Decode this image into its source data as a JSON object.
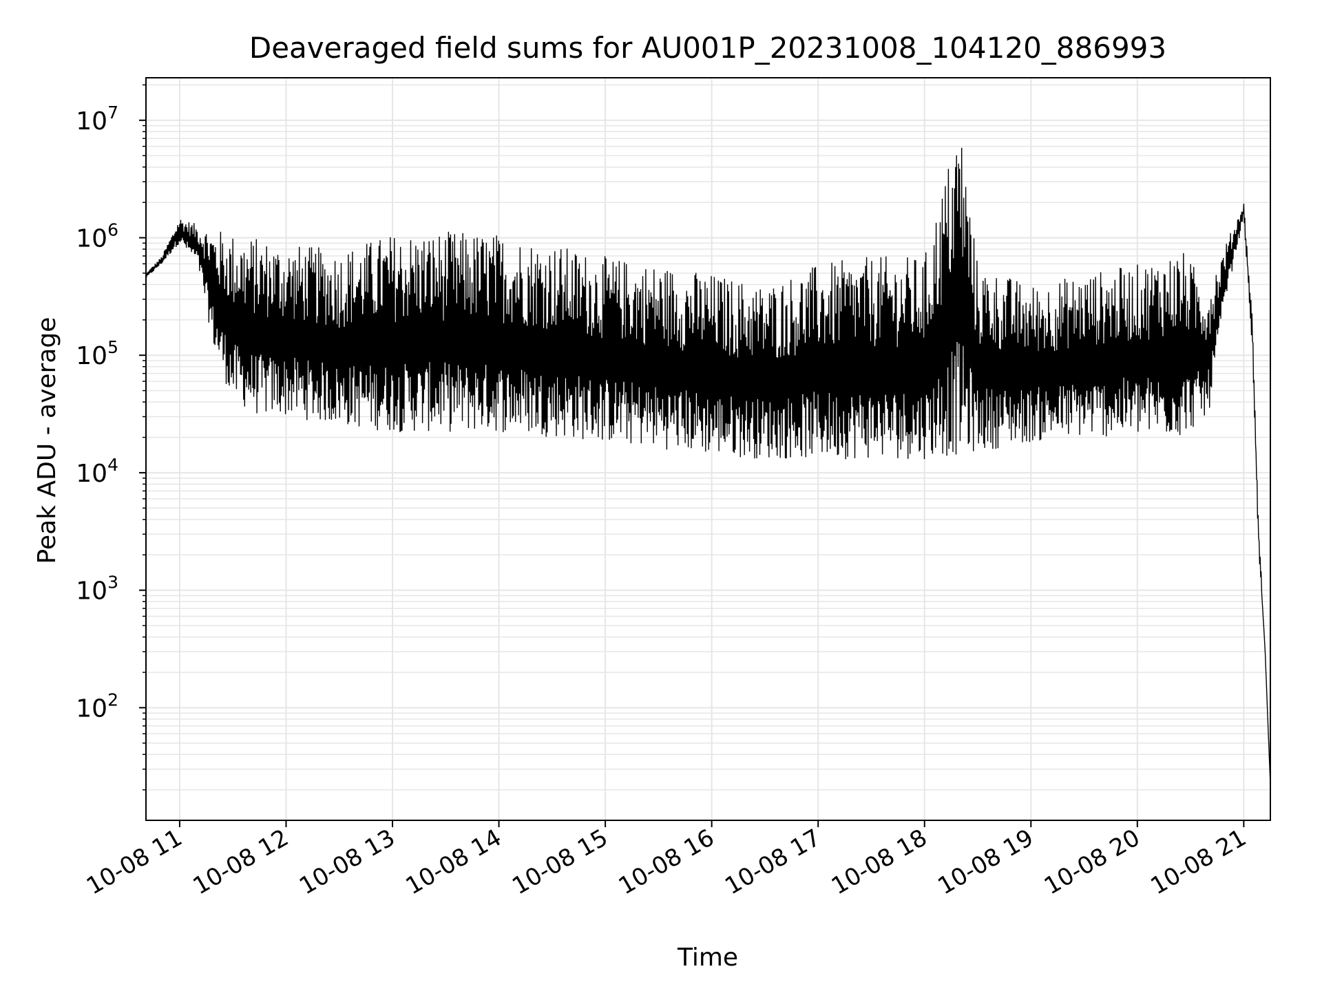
{
  "chart_data": {
    "type": "line",
    "title": "Deaveraged field sums for AU001P_20231008_104120_886993",
    "xlabel": "Time",
    "ylabel": "Peak ADU - average",
    "yscale": "log",
    "grid": true,
    "x_tick_labels": [
      "10-08 11",
      "10-08 12",
      "10-08 13",
      "10-08 14",
      "10-08 15",
      "10-08 16",
      "10-08 17",
      "10-08 18",
      "10-08 19",
      "10-08 20",
      "10-08 21"
    ],
    "y_tick_labels": [
      {
        "base": "10",
        "exp": "2"
      },
      {
        "base": "10",
        "exp": "3"
      },
      {
        "base": "10",
        "exp": "4"
      },
      {
        "base": "10",
        "exp": "5"
      },
      {
        "base": "10",
        "exp": "6"
      },
      {
        "base": "10",
        "exp": "7"
      }
    ],
    "xlim": [
      "2023-10-08 10:41",
      "2023-10-08 21:15"
    ],
    "ylim": [
      11,
      23000000
    ],
    "line_color": "#000000",
    "grid_color": "#e6e6e6",
    "series": [
      {
        "x": [
          "2023-10-08 10:41",
          "2023-10-08 10:50",
          "2023-10-08 11:00",
          "2023-10-08 11:10",
          "2023-10-08 11:20",
          "2023-10-08 11:30",
          "2023-10-08 11:45",
          "2023-10-08 12:00",
          "2023-10-08 12:30",
          "2023-10-08 13:00",
          "2023-10-08 13:30",
          "2023-10-08 14:00",
          "2023-10-08 14:30",
          "2023-10-08 15:00",
          "2023-10-08 15:30",
          "2023-10-08 16:00",
          "2023-10-08 16:30",
          "2023-10-08 17:00",
          "2023-10-08 17:30",
          "2023-10-08 18:00",
          "2023-10-08 18:20",
          "2023-10-08 18:30",
          "2023-10-08 19:00",
          "2023-10-08 19:30",
          "2023-10-08 20:00",
          "2023-10-08 20:25",
          "2023-10-08 20:40",
          "2023-10-08 20:50",
          "2023-10-08 21:00",
          "2023-10-08 21:05",
          "2023-10-08 21:08",
          "2023-10-08 21:10",
          "2023-10-08 21:12",
          "2023-10-08 21:15"
        ],
        "y_upper": [
          500000,
          700000,
          1500000,
          1300000,
          1200000,
          1100000,
          1000000,
          900000,
          800000,
          1100000,
          1150000,
          1100000,
          900000,
          700000,
          600000,
          500000,
          400000,
          600000,
          700000,
          700000,
          11000000,
          600000,
          400000,
          500000,
          600000,
          800000,
          400000,
          900000,
          2000000,
          200000,
          5000,
          1300,
          400,
          22
        ],
        "y_lower": [
          450000,
          600000,
          900000,
          600000,
          100000,
          40000,
          30000,
          30000,
          25000,
          22000,
          22000,
          22000,
          20000,
          18000,
          16000,
          14000,
          13000,
          13000,
          13000,
          13000,
          14000,
          15000,
          18000,
          20000,
          20000,
          20000,
          30000,
          300000,
          1500000,
          100000,
          3000,
          800,
          250,
          22
        ]
      }
    ]
  }
}
